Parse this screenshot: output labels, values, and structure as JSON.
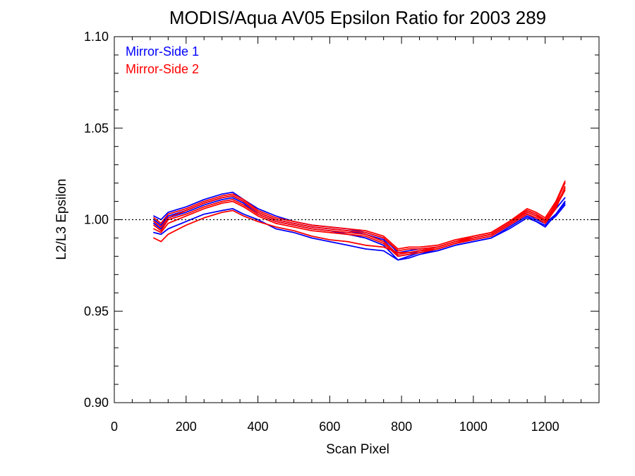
{
  "chart_data": {
    "type": "line",
    "title": "MODIS/Aqua AV05 Epsilon Ratio for 2003 289",
    "xlabel": "Scan Pixel",
    "ylabel": "L2/L3 Epsilon",
    "xlim": [
      0,
      1350
    ],
    "ylim": [
      0.9,
      1.1
    ],
    "x_ticks": [
      "0",
      "200",
      "400",
      "600",
      "800",
      "1000",
      "1200"
    ],
    "y_ticks": [
      "0.90",
      "0.95",
      "1.00",
      "1.05",
      "1.10"
    ],
    "reference_line": {
      "y": 1.0,
      "style": "dotted"
    },
    "legend": [
      {
        "label": "Mirror-Side 1",
        "color": "#0000ff"
      },
      {
        "label": "Mirror-Side 2",
        "color": "#ff0000"
      }
    ],
    "legend_position": "top-left",
    "x": [
      110,
      130,
      150,
      200,
      250,
      300,
      330,
      360,
      400,
      450,
      500,
      550,
      600,
      650,
      700,
      750,
      790,
      820,
      850,
      900,
      950,
      1000,
      1050,
      1100,
      1150,
      1175,
      1200,
      1230,
      1255
    ],
    "series": [
      {
        "color": "#0000ff",
        "values": [
          1.002,
          1.0,
          1.004,
          1.007,
          1.011,
          1.014,
          1.015,
          1.011,
          1.006,
          1.002,
          0.999,
          0.997,
          0.996,
          0.995,
          0.993,
          0.99,
          0.982,
          0.983,
          0.984,
          0.985,
          0.988,
          0.99,
          0.992,
          0.998,
          1.004,
          1.002,
          0.999,
          1.006,
          1.012
        ]
      },
      {
        "color": "#0000ff",
        "values": [
          1.0,
          0.997,
          1.002,
          1.005,
          1.009,
          1.012,
          1.013,
          1.01,
          1.004,
          1.0,
          0.998,
          0.996,
          0.995,
          0.994,
          0.992,
          0.989,
          0.98,
          0.981,
          0.983,
          0.984,
          0.987,
          0.989,
          0.991,
          0.997,
          1.003,
          1.0,
          0.998,
          1.003,
          1.009
        ]
      },
      {
        "color": "#0000ff",
        "values": [
          0.998,
          0.995,
          1.001,
          1.004,
          1.008,
          1.011,
          1.012,
          1.009,
          1.003,
          0.999,
          0.997,
          0.995,
          0.994,
          0.992,
          0.99,
          0.986,
          0.978,
          0.98,
          0.982,
          0.983,
          0.986,
          0.988,
          0.99,
          0.996,
          1.002,
          0.999,
          0.997,
          1.002,
          1.008
        ]
      },
      {
        "color": "#0000ff",
        "values": [
          0.993,
          0.992,
          0.995,
          0.999,
          1.003,
          1.005,
          1.006,
          1.003,
          1.0,
          0.995,
          0.993,
          0.99,
          0.988,
          0.986,
          0.984,
          0.983,
          0.978,
          0.979,
          0.981,
          0.983,
          0.986,
          0.988,
          0.99,
          0.995,
          1.001,
          0.999,
          0.996,
          1.003,
          1.01
        ]
      },
      {
        "color": "#ff0000",
        "values": [
          1.001,
          0.998,
          1.003,
          1.006,
          1.01,
          1.013,
          1.014,
          1.011,
          1.005,
          1.001,
          0.999,
          0.997,
          0.996,
          0.995,
          0.994,
          0.991,
          0.984,
          0.985,
          0.985,
          0.986,
          0.989,
          0.991,
          0.993,
          0.999,
          1.005,
          1.003,
          1.0,
          1.008,
          1.017
        ]
      },
      {
        "color": "#ff0000",
        "values": [
          0.999,
          0.996,
          1.001,
          1.005,
          1.009,
          1.012,
          1.013,
          1.01,
          1.004,
          1.0,
          0.998,
          0.996,
          0.995,
          0.994,
          0.993,
          0.99,
          0.983,
          0.984,
          0.984,
          0.985,
          0.988,
          0.99,
          0.992,
          0.998,
          1.004,
          1.002,
          0.999,
          1.007,
          1.016
        ]
      },
      {
        "color": "#ff0000",
        "values": [
          0.997,
          0.994,
          1.0,
          1.003,
          1.007,
          1.01,
          1.011,
          1.008,
          1.003,
          0.999,
          0.997,
          0.995,
          0.994,
          0.993,
          0.992,
          0.988,
          0.981,
          0.982,
          0.983,
          0.984,
          0.987,
          0.989,
          0.991,
          0.997,
          1.003,
          1.001,
          0.998,
          1.006,
          1.018
        ]
      },
      {
        "color": "#ff0000",
        "values": [
          0.995,
          0.993,
          0.998,
          1.002,
          1.006,
          1.009,
          1.01,
          1.007,
          1.002,
          0.998,
          0.996,
          0.994,
          0.993,
          0.992,
          0.991,
          0.987,
          0.98,
          0.981,
          0.982,
          0.984,
          0.987,
          0.99,
          0.992,
          0.998,
          1.005,
          1.003,
          0.999,
          1.009,
          1.02
        ]
      },
      {
        "color": "#ff0000",
        "values": [
          0.99,
          0.988,
          0.992,
          0.997,
          1.001,
          1.004,
          1.005,
          1.002,
          0.999,
          0.996,
          0.994,
          0.991,
          0.989,
          0.988,
          0.986,
          0.985,
          0.982,
          0.982,
          0.983,
          0.985,
          0.988,
          0.991,
          0.993,
          0.999,
          1.006,
          1.004,
          1.001,
          1.01,
          1.021
        ]
      }
    ]
  }
}
